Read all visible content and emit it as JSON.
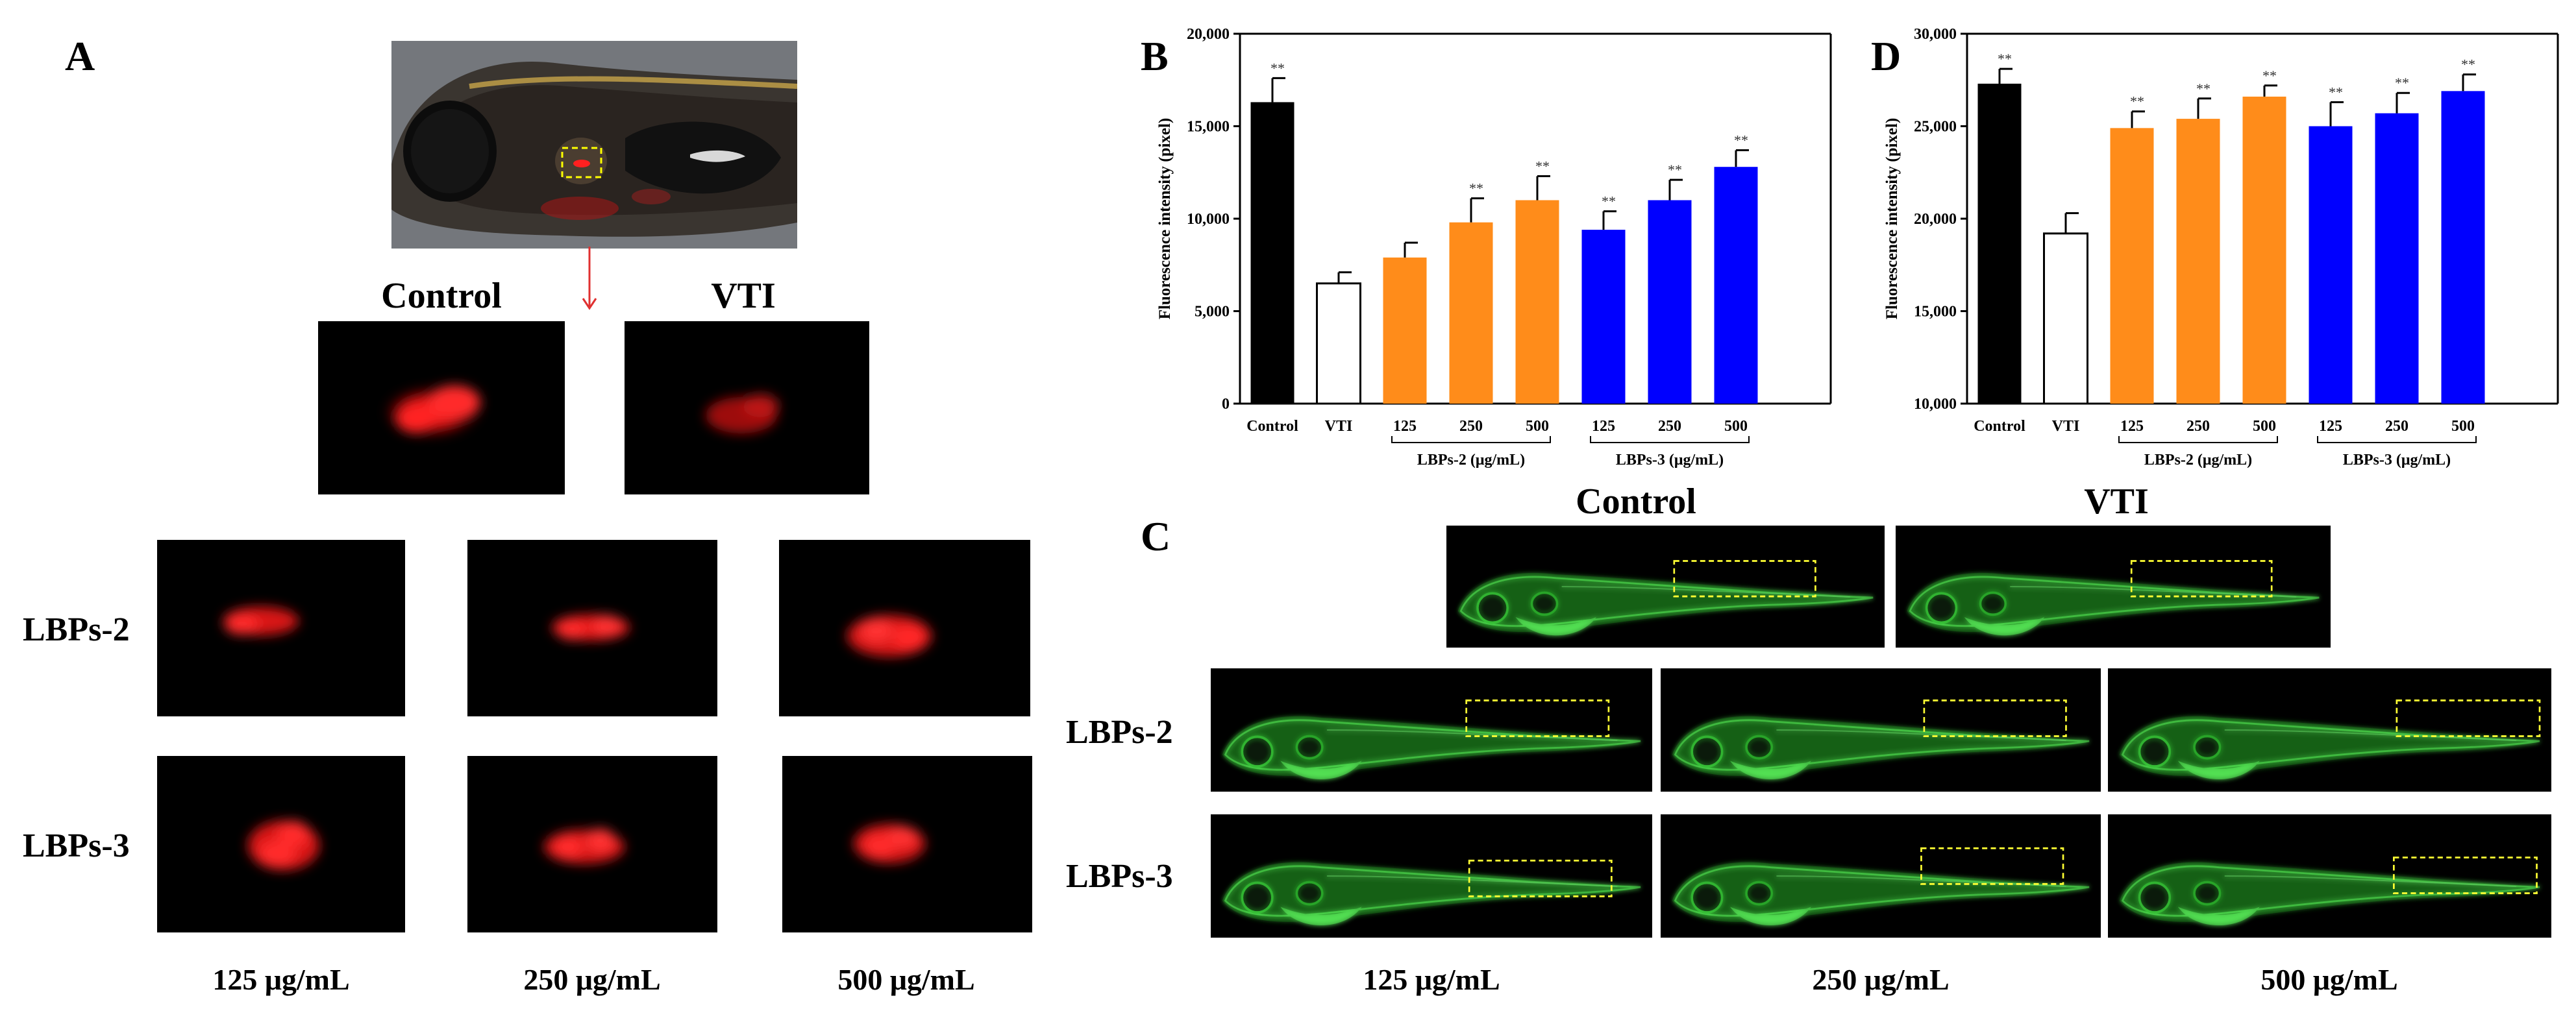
{
  "panels": {
    "a": {
      "letter": "A",
      "col_labels": [
        "Control",
        "VTI"
      ],
      "row_labels": [
        "LBPs-2",
        "LBPs-3"
      ],
      "concentrations": [
        "125 μg/mL",
        "250 μg/mL",
        "500 μg/mL"
      ]
    },
    "b": {
      "letter": "B"
    },
    "c": {
      "letter": "C",
      "col_labels": [
        "Control",
        "VTI"
      ],
      "row_labels": [
        "LBPs-2",
        "LBPs-3"
      ],
      "concentrations": [
        "125 μg/mL",
        "250 μg/mL",
        "500 μg/mL"
      ]
    },
    "d": {
      "letter": "D"
    }
  },
  "chart_data": [
    {
      "id": "B",
      "type": "bar",
      "ylabel": "Fluorescence intensity (pixel)",
      "ylim": [
        0,
        20000
      ],
      "yticks": [
        0,
        5000,
        10000,
        15000,
        20000
      ],
      "ytick_labels": [
        "0",
        "5,000",
        "10,000",
        "15,000",
        "20,000"
      ],
      "categories": [
        "Control",
        "VTI",
        "125",
        "250",
        "500",
        "125",
        "250",
        "500"
      ],
      "values": [
        16300,
        6500,
        7900,
        9800,
        11000,
        9400,
        11000,
        12800
      ],
      "errors": [
        1300,
        600,
        800,
        1300,
        1300,
        1000,
        1100,
        900
      ],
      "significance": [
        "**",
        "",
        "",
        "**",
        "**",
        "**",
        "**",
        "**"
      ],
      "colors": [
        "#000000",
        "#ffffff",
        "#ff8c1a",
        "#ff8c1a",
        "#ff8c1a",
        "#0000ff",
        "#0000ff",
        "#0000ff"
      ],
      "groups": [
        {
          "label": "LBPs-2 (μg/mL)",
          "start": 2,
          "end": 4
        },
        {
          "label": "LBPs-3 (μg/mL)",
          "start": 5,
          "end": 7
        }
      ]
    },
    {
      "id": "D",
      "type": "bar",
      "ylabel": "Fluorescence intensity (pixel)",
      "ylim": [
        10000,
        30000
      ],
      "yticks": [
        10000,
        15000,
        20000,
        25000,
        30000
      ],
      "ytick_labels": [
        "10,000",
        "15,000",
        "20,000",
        "25,000",
        "30,000"
      ],
      "categories": [
        "Control",
        "VTI",
        "125",
        "250",
        "500",
        "125",
        "250",
        "500"
      ],
      "values": [
        27300,
        19200,
        24900,
        25400,
        26600,
        25000,
        25700,
        26900
      ],
      "errors": [
        800,
        1100,
        900,
        1100,
        600,
        1300,
        1100,
        900
      ],
      "significance": [
        "**",
        "",
        "**",
        "**",
        "**",
        "**",
        "**",
        "**"
      ],
      "colors": [
        "#000000",
        "#ffffff",
        "#ff8c1a",
        "#ff8c1a",
        "#ff8c1a",
        "#0000ff",
        "#0000ff",
        "#0000ff"
      ],
      "groups": [
        {
          "label": "LBPs-2 (μg/mL)",
          "start": 2,
          "end": 4
        },
        {
          "label": "LBPs-3 (μg/mL)",
          "start": 5,
          "end": 7
        }
      ]
    }
  ]
}
